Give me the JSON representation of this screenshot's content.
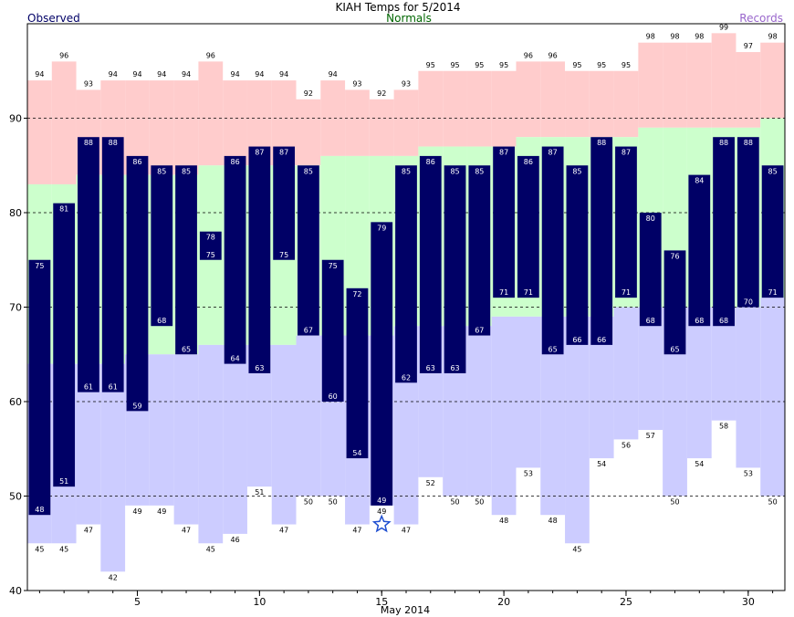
{
  "header": {
    "title": "KIAH Temps for 5/2014",
    "legend_observed": "Observed",
    "legend_normals": "Normals",
    "legend_records": "Records"
  },
  "colors": {
    "observed_bar": "#000066",
    "record_band": "#ffcccc",
    "normal_band": "#ccffcc",
    "record_low_band": "#ccccff",
    "observed_text": "#000066",
    "normals_text": "#006600",
    "records_text": "#9966cc",
    "grid": "#000000",
    "star": "#1f4fd1"
  },
  "chart_data": {
    "type": "bar",
    "title": "KIAH Temps for 5/2014",
    "xlabel": "May 2014",
    "ylabel": "",
    "x_ticks": [
      5,
      10,
      15,
      20,
      25,
      30
    ],
    "x_tick_labels": [
      "5",
      "10",
      "15",
      "20",
      "25",
      "30"
    ],
    "y_ticks": [
      40,
      50,
      60,
      70,
      80,
      90
    ],
    "y_tick_labels": [
      "40",
      "50",
      "60",
      "70",
      "80",
      "90"
    ],
    "ylim": [
      40,
      100
    ],
    "xlim": [
      0.5,
      31.5
    ],
    "grid": "horizontal dashed",
    "legend": "top",
    "days": [
      1,
      2,
      3,
      4,
      5,
      6,
      7,
      8,
      9,
      10,
      11,
      12,
      13,
      14,
      15,
      16,
      17,
      18,
      19,
      20,
      21,
      22,
      23,
      24,
      25,
      26,
      27,
      28,
      29,
      30,
      31
    ],
    "observed_high": [
      75,
      81,
      88,
      88,
      86,
      85,
      85,
      78,
      86,
      87,
      87,
      85,
      75,
      72,
      79,
      85,
      86,
      85,
      85,
      87,
      86,
      87,
      85,
      88,
      87,
      80,
      76,
      84,
      88,
      88,
      85
    ],
    "observed_low": [
      48,
      51,
      61,
      61,
      59,
      68,
      65,
      75,
      64,
      63,
      75,
      67,
      60,
      54,
      49,
      62,
      63,
      63,
      67,
      71,
      71,
      65,
      66,
      66,
      71,
      68,
      65,
      68,
      68,
      70,
      71
    ],
    "normal_high": [
      83,
      83,
      84,
      84,
      84,
      84,
      84,
      85,
      85,
      85,
      85,
      85,
      86,
      86,
      86,
      86,
      87,
      87,
      87,
      87,
      88,
      88,
      88,
      88,
      88,
      89,
      89,
      89,
      89,
      89,
      90
    ],
    "normal_low": [
      64,
      64,
      64,
      64,
      65,
      65,
      65,
      66,
      66,
      66,
      66,
      67,
      67,
      67,
      67,
      68,
      68,
      68,
      68,
      69,
      69,
      69,
      69,
      69,
      70,
      70,
      70,
      70,
      70,
      70,
      71
    ],
    "record_high": [
      94,
      96,
      93,
      94,
      94,
      94,
      94,
      96,
      94,
      94,
      94,
      92,
      94,
      93,
      92,
      93,
      95,
      95,
      95,
      95,
      96,
      96,
      95,
      95,
      95,
      98,
      98,
      98,
      99,
      97,
      98
    ],
    "record_low": [
      45,
      45,
      47,
      42,
      49,
      49,
      47,
      45,
      46,
      51,
      47,
      50,
      50,
      47,
      49,
      47,
      52,
      50,
      50,
      48,
      53,
      48,
      45,
      54,
      56,
      57,
      50,
      54,
      58,
      53,
      50
    ],
    "markers": [
      {
        "day": 15,
        "value": 47,
        "symbol": "star"
      }
    ]
  }
}
